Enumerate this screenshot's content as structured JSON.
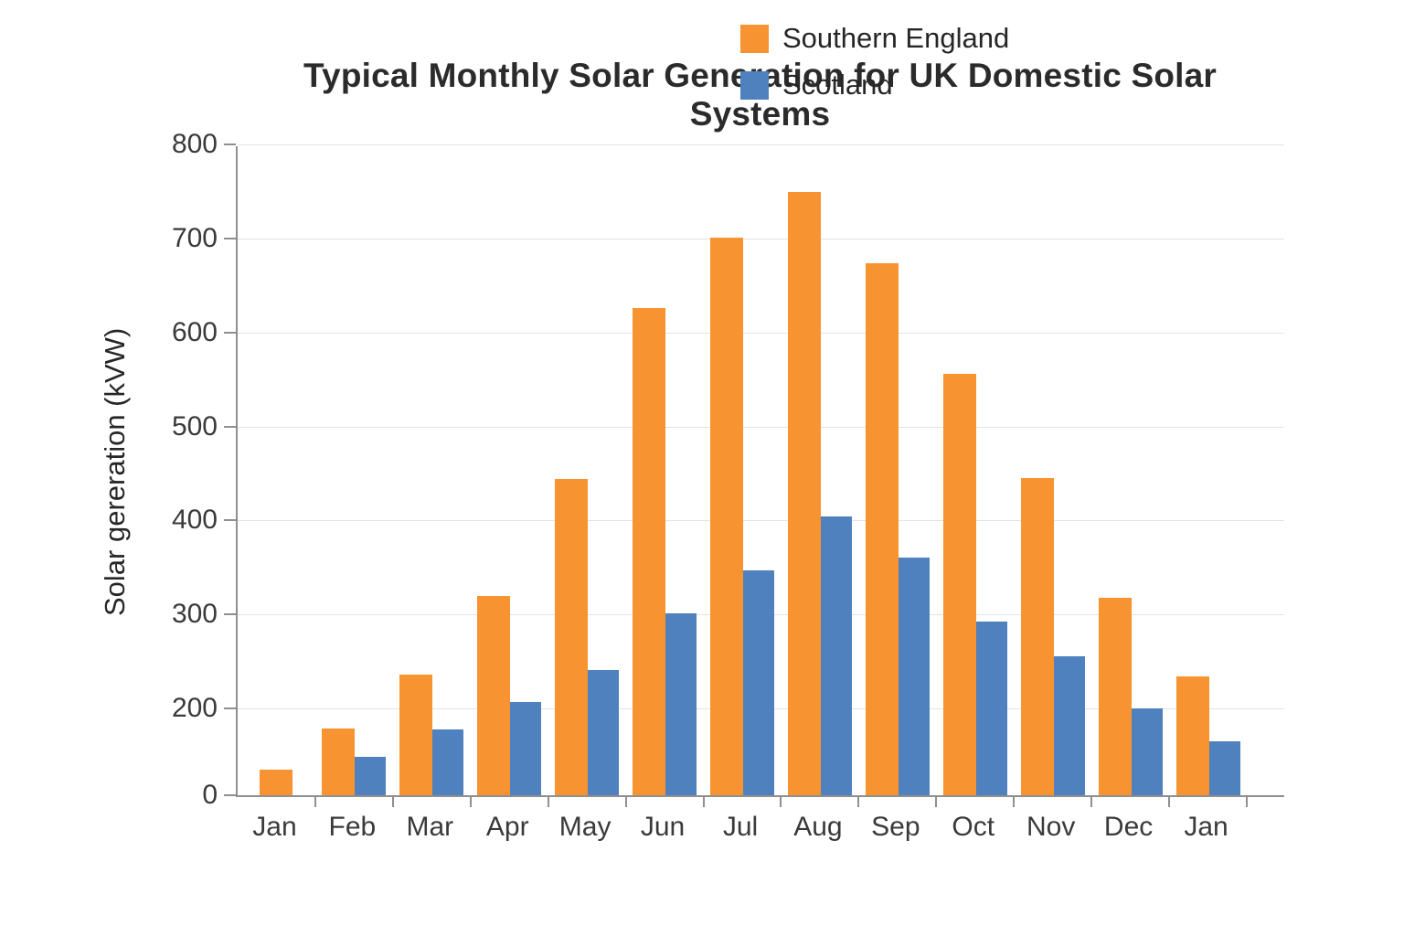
{
  "title": "Typical Monthly Solar Generation for UK Domestic Solar Systems",
  "chart_data": {
    "type": "bar",
    "title": "Typical Monthly Solar Generation for UK Domestic Solar Systems",
    "xlabel": "",
    "ylabel": "Solar gereration (kVW)",
    "categories": [
      "Jan",
      "Feb",
      "Mar",
      "Apr",
      "May",
      "Jun",
      "Jul",
      "Aug",
      "Sep",
      "Oct",
      "Nov",
      "Dec",
      "Jan"
    ],
    "series": [
      {
        "name": "Southern England",
        "color": "#F79331",
        "values": [
          60,
          153,
          236,
          320,
          444,
          626,
          701,
          749,
          674,
          556,
          445,
          318,
          234
        ]
      },
      {
        "name": "Scotland",
        "color": "#4E81BD",
        "values": [
          null,
          88,
          151,
          207,
          241,
          301,
          347,
          404,
          360,
          292,
          255,
          200,
          124
        ]
      }
    ],
    "ylim": [
      0,
      800
    ],
    "yticks": [
      0,
      200,
      300,
      400,
      500,
      600,
      700,
      800
    ],
    "grid": true,
    "legend_position": "top-right",
    "plot_background": "#ffffff"
  }
}
